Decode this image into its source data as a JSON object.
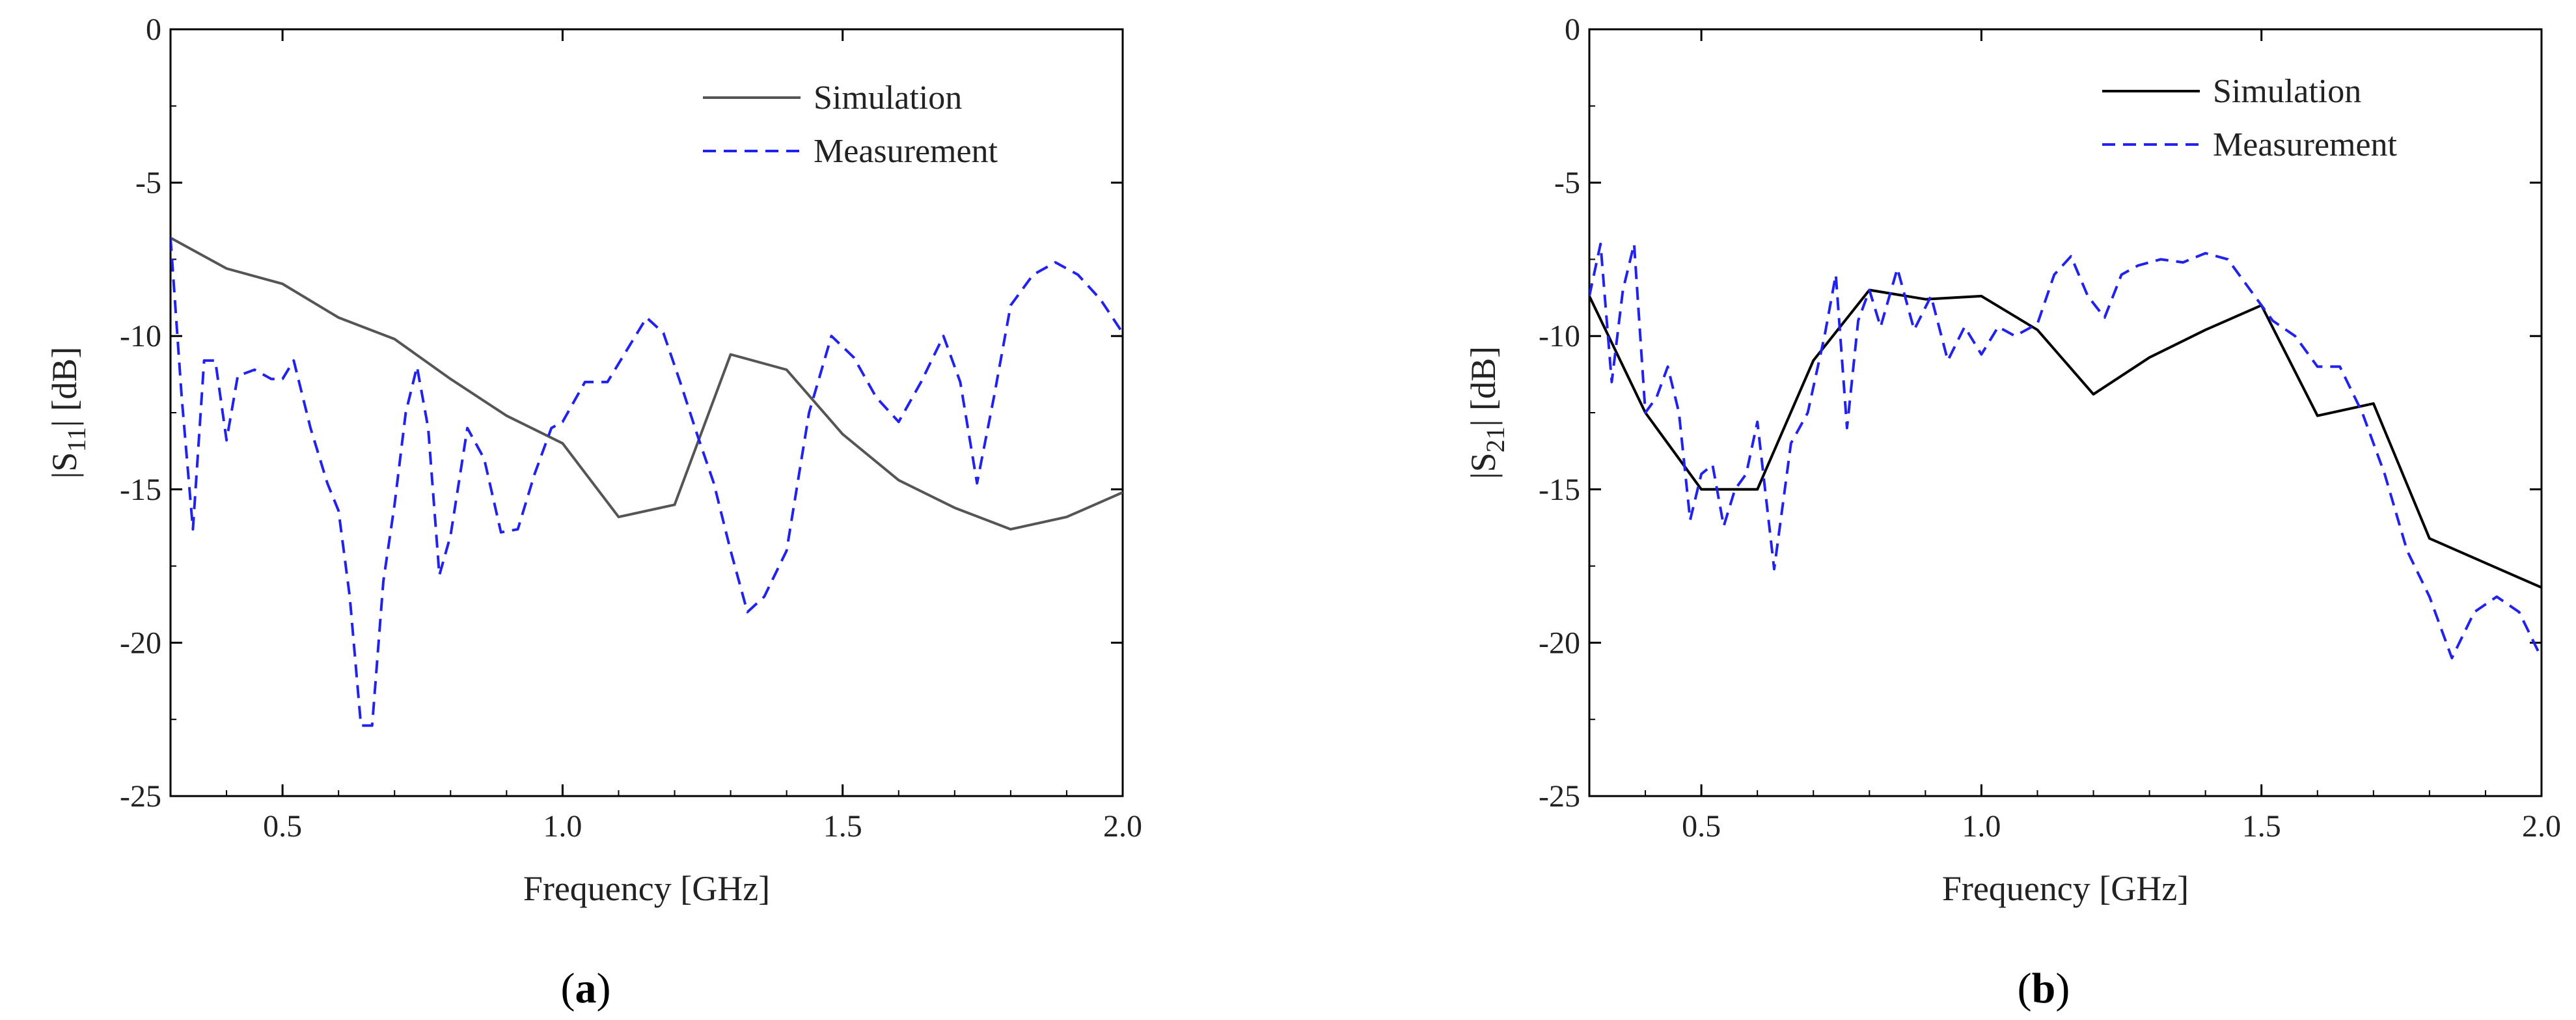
{
  "chart_data": [
    {
      "type": "line",
      "panel_label": "a",
      "xlabel": "Frequency [GHz]",
      "ylabel_main": "|S",
      "ylabel_sub": "11",
      "ylabel_tail": "| [dB]",
      "xlim": [
        0.3,
        2.0
      ],
      "ylim": [
        -25,
        0
      ],
      "xticks": [
        0.5,
        1.0,
        1.5,
        2.0
      ],
      "xtick_labels": [
        "0.5",
        "1.0",
        "1.5",
        "2.0"
      ],
      "yticks": [
        0,
        -5,
        -10,
        -15,
        -20,
        -25
      ],
      "ytick_labels": [
        "0",
        "-5",
        "-10",
        "-15",
        "-20",
        "-25"
      ],
      "legend_position": "top-right",
      "series": [
        {
          "name": "Simulation",
          "color": "#555555",
          "style": "solid",
          "x": [
            0.3,
            0.4,
            0.5,
            0.6,
            0.7,
            0.8,
            0.9,
            1.0,
            1.1,
            1.2,
            1.3,
            1.4,
            1.5,
            1.6,
            1.7,
            1.8,
            1.9,
            2.0
          ],
          "y": [
            -6.8,
            -7.8,
            -8.3,
            -9.4,
            -10.1,
            -11.4,
            -12.6,
            -13.5,
            -15.9,
            -15.5,
            -10.6,
            -11.1,
            -13.2,
            -14.7,
            -15.6,
            -16.3,
            -15.9,
            -15.1
          ]
        },
        {
          "name": "Measurement",
          "color": "#2222ee",
          "style": "dashed",
          "x": [
            0.3,
            0.32,
            0.34,
            0.36,
            0.38,
            0.4,
            0.42,
            0.45,
            0.48,
            0.5,
            0.52,
            0.55,
            0.58,
            0.6,
            0.62,
            0.64,
            0.66,
            0.68,
            0.7,
            0.72,
            0.74,
            0.76,
            0.78,
            0.8,
            0.83,
            0.86,
            0.89,
            0.92,
            0.95,
            0.98,
            1.0,
            1.04,
            1.08,
            1.12,
            1.15,
            1.18,
            1.21,
            1.24,
            1.27,
            1.3,
            1.33,
            1.36,
            1.4,
            1.44,
            1.48,
            1.52,
            1.56,
            1.6,
            1.64,
            1.68,
            1.71,
            1.74,
            1.77,
            1.8,
            1.84,
            1.88,
            1.92,
            1.96,
            2.0
          ],
          "y": [
            -6.8,
            -12.0,
            -16.3,
            -10.8,
            -10.8,
            -13.4,
            -11.3,
            -11.1,
            -11.4,
            -11.4,
            -10.8,
            -13.0,
            -14.8,
            -15.7,
            -18.5,
            -22.7,
            -22.7,
            -18.0,
            -15.5,
            -12.5,
            -11.0,
            -13.0,
            -17.8,
            -16.5,
            -13.0,
            -14.0,
            -16.4,
            -16.3,
            -14.5,
            -13.0,
            -12.8,
            -11.5,
            -11.5,
            -10.3,
            -9.4,
            -9.9,
            -11.5,
            -13.2,
            -14.8,
            -17.0,
            -19.0,
            -18.5,
            -17.0,
            -12.5,
            -10.0,
            -10.7,
            -12.0,
            -12.8,
            -11.5,
            -10.0,
            -11.5,
            -14.8,
            -12.0,
            -9.0,
            -8.0,
            -7.6,
            -8.0,
            -8.8,
            -9.9
          ]
        }
      ]
    },
    {
      "type": "line",
      "panel_label": "b",
      "xlabel": "Frequency [GHz]",
      "ylabel_main": "|S",
      "ylabel_sub": "21",
      "ylabel_tail": "| [dB]",
      "xlim": [
        0.3,
        2.0
      ],
      "ylim": [
        -25,
        0
      ],
      "xticks": [
        0.5,
        1.0,
        1.5,
        2.0
      ],
      "xtick_labels": [
        "0.5",
        "1.0",
        "1.5",
        "2.0"
      ],
      "yticks": [
        0,
        -5,
        -10,
        -15,
        -20,
        -25
      ],
      "ytick_labels": [
        "0",
        "-5",
        "-10",
        "-15",
        "-20",
        "-25"
      ],
      "legend_position": "top-right",
      "series": [
        {
          "name": "Simulation",
          "color": "#000000",
          "style": "solid",
          "x": [
            0.3,
            0.4,
            0.5,
            0.6,
            0.7,
            0.8,
            0.9,
            1.0,
            1.1,
            1.2,
            1.3,
            1.4,
            1.5,
            1.6,
            1.7,
            1.8,
            1.9,
            2.0
          ],
          "y": [
            -8.7,
            -12.5,
            -15.0,
            -15.0,
            -10.8,
            -8.5,
            -8.8,
            -8.7,
            -9.8,
            -11.9,
            -10.7,
            -9.8,
            -9.0,
            -12.6,
            -12.2,
            -16.6,
            -17.4,
            -18.2
          ]
        },
        {
          "name": "Measurement",
          "color": "#2222ee",
          "style": "dashed",
          "x": [
            0.3,
            0.32,
            0.34,
            0.36,
            0.38,
            0.4,
            0.42,
            0.44,
            0.46,
            0.48,
            0.5,
            0.52,
            0.54,
            0.56,
            0.58,
            0.6,
            0.63,
            0.66,
            0.69,
            0.72,
            0.74,
            0.76,
            0.78,
            0.8,
            0.82,
            0.85,
            0.88,
            0.91,
            0.94,
            0.97,
            1.0,
            1.03,
            1.06,
            1.1,
            1.13,
            1.16,
            1.19,
            1.22,
            1.25,
            1.28,
            1.32,
            1.36,
            1.4,
            1.44,
            1.48,
            1.52,
            1.56,
            1.6,
            1.64,
            1.68,
            1.72,
            1.76,
            1.8,
            1.84,
            1.88,
            1.92,
            1.96,
            2.0
          ],
          "y": [
            -8.7,
            -7.0,
            -11.5,
            -8.5,
            -7.0,
            -12.5,
            -12.0,
            -11.0,
            -12.5,
            -16.0,
            -14.5,
            -14.2,
            -16.2,
            -15.0,
            -14.5,
            -12.8,
            -17.6,
            -13.5,
            -12.5,
            -10.0,
            -8.0,
            -13.0,
            -9.5,
            -8.5,
            -9.7,
            -7.8,
            -9.8,
            -8.7,
            -10.8,
            -9.7,
            -10.6,
            -9.7,
            -10.0,
            -9.6,
            -8.0,
            -7.4,
            -8.7,
            -9.4,
            -8.0,
            -7.7,
            -7.5,
            -7.6,
            -7.3,
            -7.5,
            -8.5,
            -9.5,
            -10.0,
            -11.0,
            -11.0,
            -12.5,
            -14.5,
            -17.0,
            -18.5,
            -20.5,
            -19.0,
            -18.5,
            -19.0,
            -20.5
          ]
        }
      ]
    }
  ]
}
